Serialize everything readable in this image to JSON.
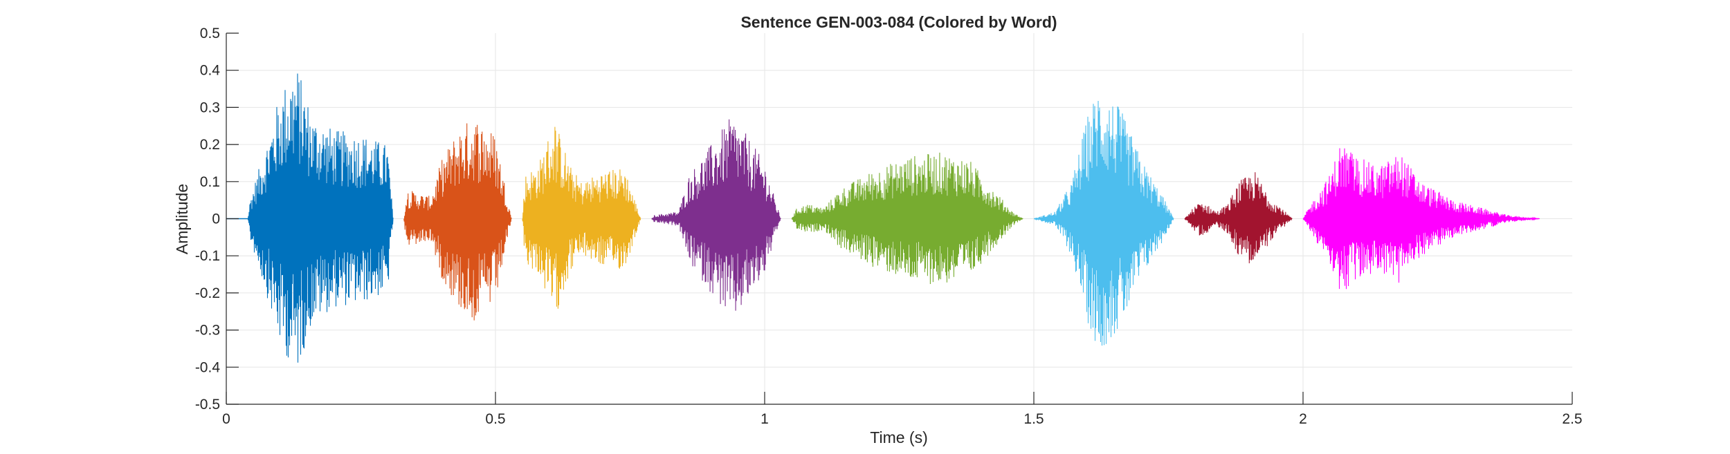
{
  "chart_data": {
    "type": "line",
    "title": "Sentence GEN-003-084 (Colored by Word)",
    "xlabel": "Time (s)",
    "ylabel": "Amplitude",
    "xlim": [
      0,
      2.5
    ],
    "ylim": [
      -0.5,
      0.5
    ],
    "xticks": [
      0,
      0.5,
      1,
      1.5,
      2,
      2.5
    ],
    "xtick_labels": [
      "0",
      "0.5",
      "1",
      "1.5",
      "2",
      "2.5"
    ],
    "yticks": [
      -0.5,
      -0.4,
      -0.3,
      -0.2,
      -0.1,
      0,
      0.1,
      0.2,
      0.3,
      0.4,
      0.5
    ],
    "ytick_labels": [
      "-0.5",
      "-0.4",
      "-0.3",
      "-0.2",
      "-0.1",
      "0",
      "0.1",
      "0.2",
      "0.3",
      "0.4",
      "0.5"
    ],
    "grid": true,
    "series": [
      {
        "color": "#0072BD",
        "t_start": 0.0,
        "t_end": 0.31,
        "envelope": [
          [
            0.0,
            0.0
          ],
          [
            0.04,
            0.0
          ],
          [
            0.045,
            0.06
          ],
          [
            0.07,
            0.18
          ],
          [
            0.1,
            0.34
          ],
          [
            0.13,
            0.42
          ],
          [
            0.16,
            0.28
          ],
          [
            0.2,
            0.24
          ],
          [
            0.25,
            0.23
          ],
          [
            0.3,
            0.2
          ],
          [
            0.31,
            0.0
          ]
        ]
      },
      {
        "color": "#D95319",
        "t_start": 0.33,
        "t_end": 0.53,
        "envelope": [
          [
            0.33,
            0.0
          ],
          [
            0.335,
            0.08
          ],
          [
            0.38,
            0.06
          ],
          [
            0.4,
            0.16
          ],
          [
            0.43,
            0.24
          ],
          [
            0.46,
            0.28
          ],
          [
            0.5,
            0.23
          ],
          [
            0.53,
            0.0
          ]
        ]
      },
      {
        "color": "#EDB120",
        "t_start": 0.55,
        "t_end": 0.77,
        "envelope": [
          [
            0.55,
            0.0
          ],
          [
            0.555,
            0.12
          ],
          [
            0.58,
            0.15
          ],
          [
            0.61,
            0.27
          ],
          [
            0.64,
            0.14
          ],
          [
            0.66,
            0.1
          ],
          [
            0.7,
            0.13
          ],
          [
            0.74,
            0.14
          ],
          [
            0.77,
            0.0
          ]
        ]
      },
      {
        "color": "#7E2F8E",
        "t_start": 0.79,
        "t_end": 1.03,
        "envelope": [
          [
            0.79,
            0.0
          ],
          [
            0.795,
            0.01
          ],
          [
            0.84,
            0.02
          ],
          [
            0.86,
            0.12
          ],
          [
            0.9,
            0.2
          ],
          [
            0.94,
            0.28
          ],
          [
            0.97,
            0.22
          ],
          [
            1.0,
            0.15
          ],
          [
            1.03,
            0.0
          ]
        ]
      },
      {
        "color": "#77AC30",
        "t_start": 1.05,
        "t_end": 1.48,
        "envelope": [
          [
            1.05,
            0.0
          ],
          [
            1.06,
            0.03
          ],
          [
            1.08,
            0.04
          ],
          [
            1.11,
            0.03
          ],
          [
            1.14,
            0.08
          ],
          [
            1.2,
            0.13
          ],
          [
            1.27,
            0.17
          ],
          [
            1.33,
            0.18
          ],
          [
            1.38,
            0.16
          ],
          [
            1.42,
            0.09
          ],
          [
            1.46,
            0.02
          ],
          [
            1.48,
            0.0
          ]
        ]
      },
      {
        "color": "#4DBEEE",
        "t_start": 1.5,
        "t_end": 1.76,
        "envelope": [
          [
            1.5,
            0.0
          ],
          [
            1.52,
            0.01
          ],
          [
            1.54,
            0.02
          ],
          [
            1.57,
            0.1
          ],
          [
            1.6,
            0.28
          ],
          [
            1.62,
            0.36
          ],
          [
            1.66,
            0.3
          ],
          [
            1.7,
            0.16
          ],
          [
            1.74,
            0.06
          ],
          [
            1.76,
            0.0
          ]
        ]
      },
      {
        "color": "#A2142F",
        "t_start": 1.78,
        "t_end": 1.98,
        "envelope": [
          [
            1.78,
            0.0
          ],
          [
            1.79,
            0.02
          ],
          [
            1.81,
            0.05
          ],
          [
            1.84,
            0.02
          ],
          [
            1.86,
            0.04
          ],
          [
            1.88,
            0.1
          ],
          [
            1.91,
            0.13
          ],
          [
            1.94,
            0.06
          ],
          [
            1.98,
            0.0
          ]
        ]
      },
      {
        "color": "#FF00FF",
        "t_start": 2.0,
        "t_end": 2.44,
        "envelope": [
          [
            2.0,
            0.0
          ],
          [
            2.01,
            0.03
          ],
          [
            2.05,
            0.12
          ],
          [
            2.07,
            0.21
          ],
          [
            2.1,
            0.17
          ],
          [
            2.14,
            0.14
          ],
          [
            2.18,
            0.18
          ],
          [
            2.22,
            0.1
          ],
          [
            2.28,
            0.05
          ],
          [
            2.33,
            0.03
          ],
          [
            2.38,
            0.01
          ],
          [
            2.44,
            0.0
          ]
        ]
      }
    ]
  }
}
